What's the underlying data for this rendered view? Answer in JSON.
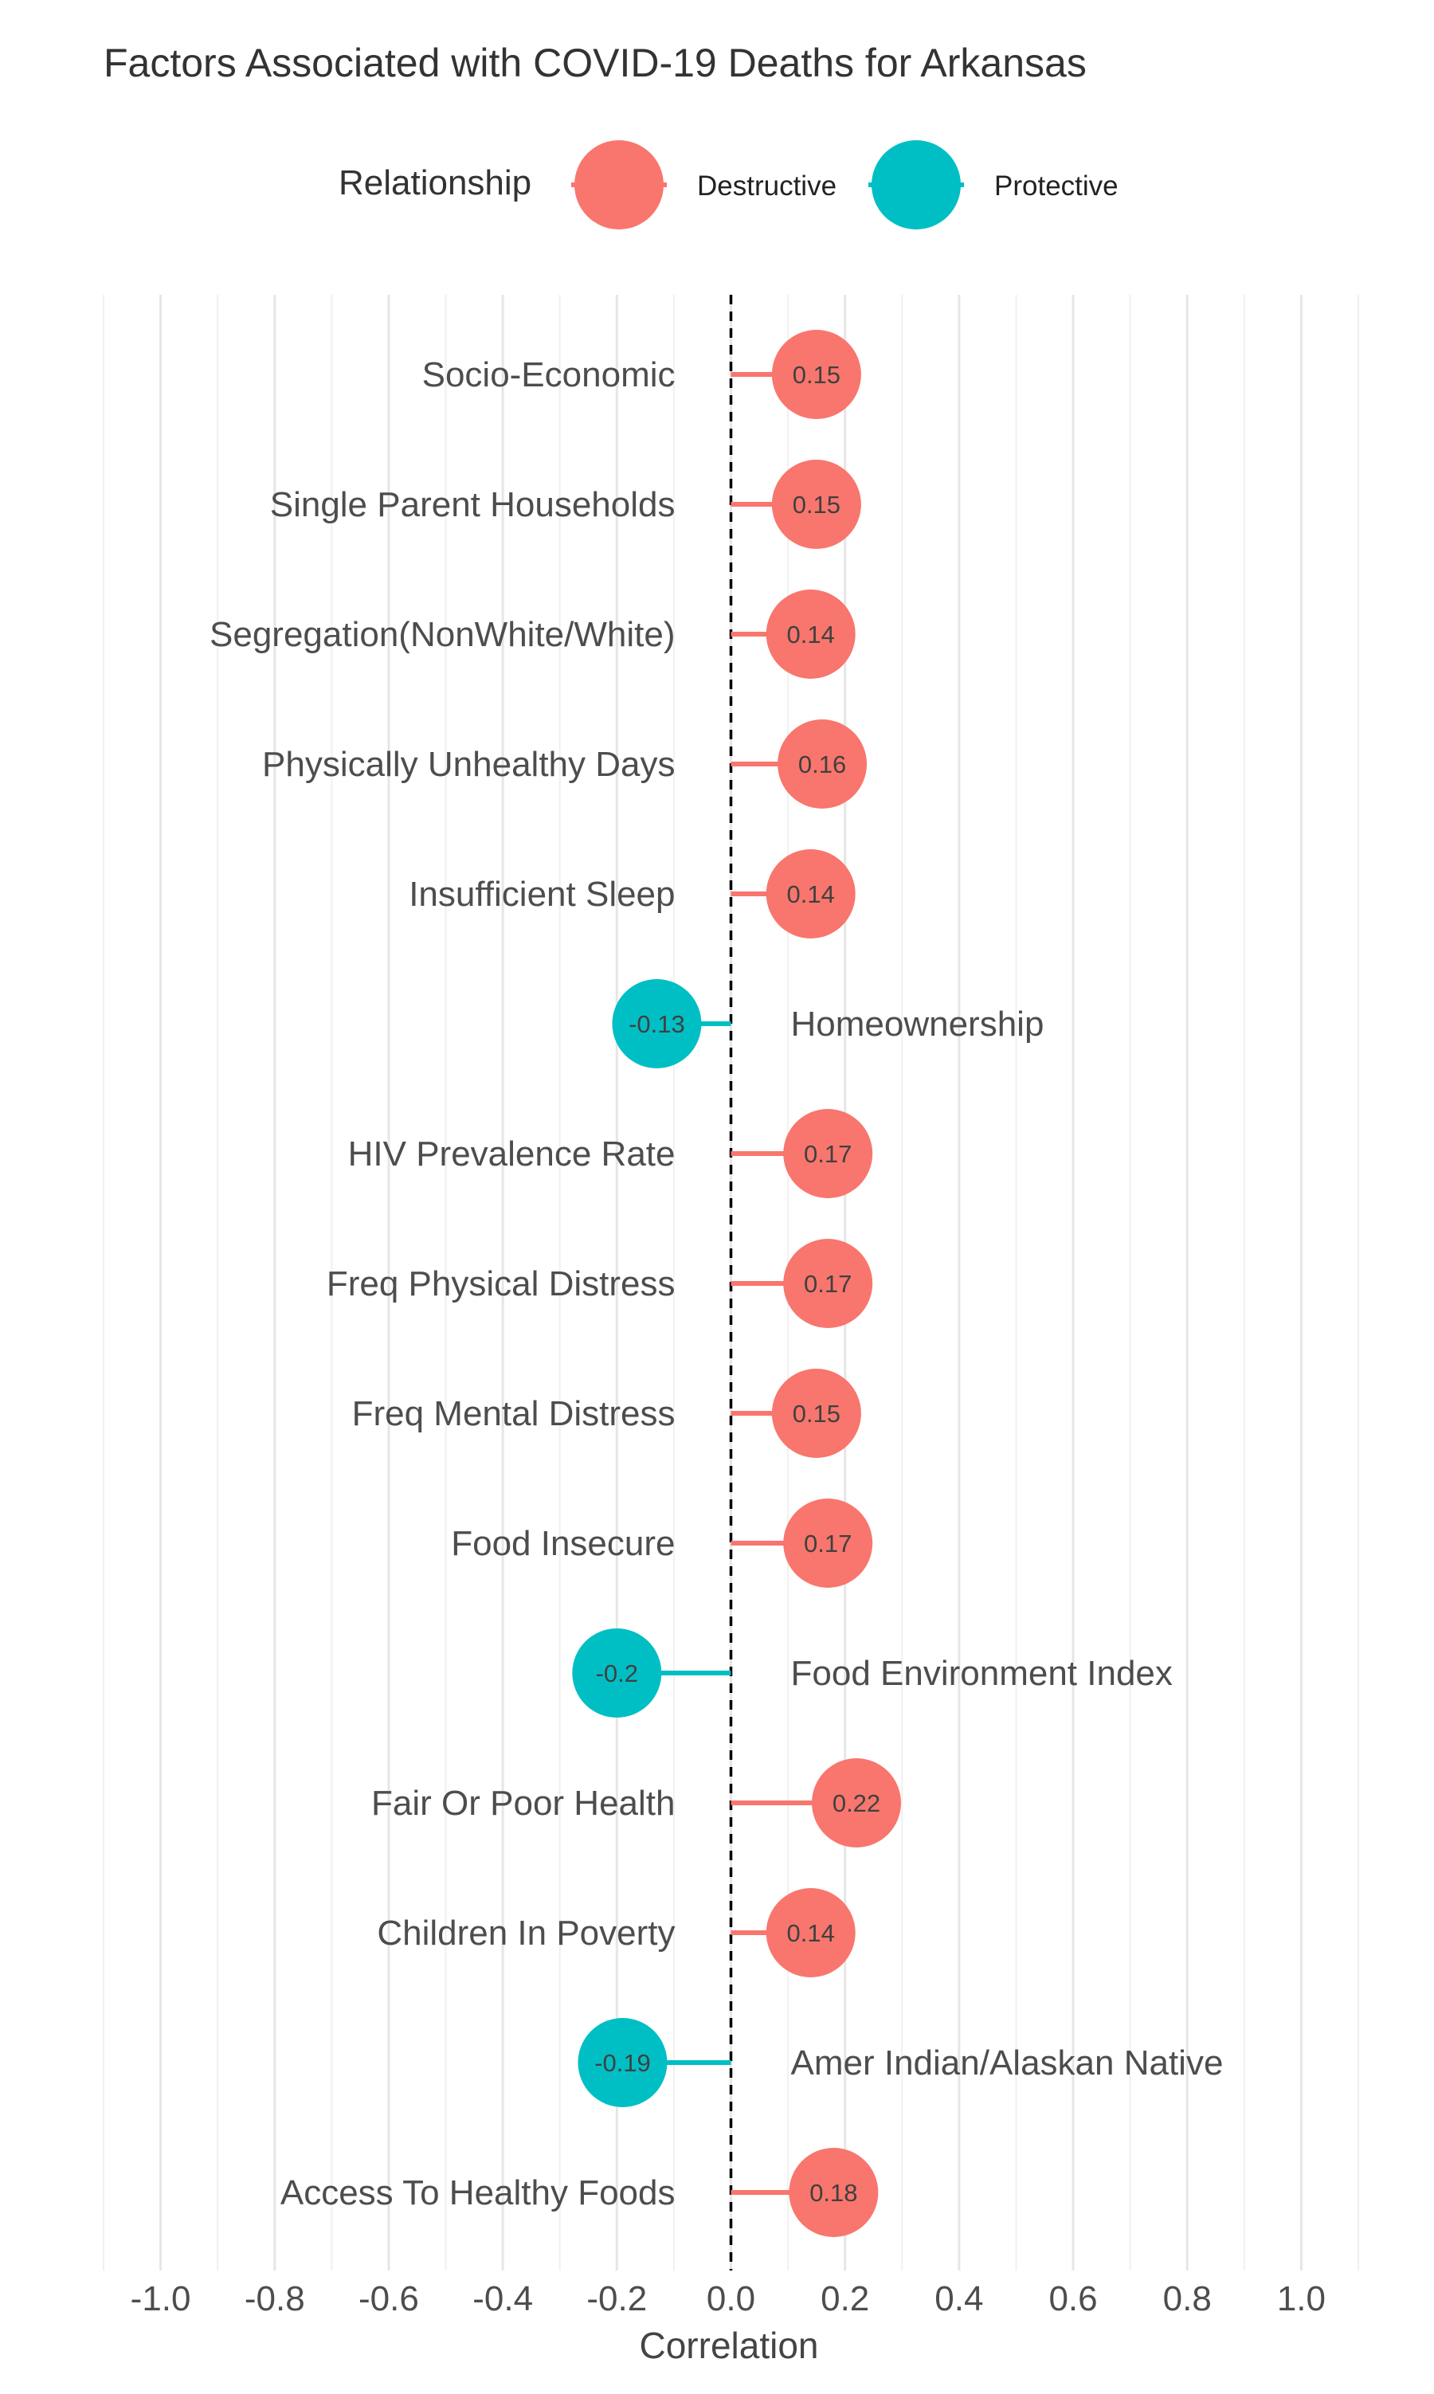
{
  "chart_data": {
    "type": "lollipop",
    "title": "Factors Associated with COVID-19 Deaths for Arkansas",
    "xlabel": "Correlation",
    "ylabel": "",
    "xlim": [
      -1.1,
      1.1
    ],
    "x_ticks": [
      -1.0,
      -0.8,
      -0.6,
      -0.4,
      -0.2,
      0.0,
      0.2,
      0.4,
      0.6,
      0.8,
      1.0
    ],
    "x_tick_labels": [
      "-1.0",
      "-0.8",
      "-0.6",
      "-0.4",
      "-0.2",
      "0.0",
      "0.2",
      "0.4",
      "0.6",
      "0.8",
      "1.0"
    ],
    "grid": true,
    "reference_line": {
      "x": 0,
      "style": "dashed",
      "color": "#000000"
    },
    "legend": {
      "title": "Relationship",
      "position": "top",
      "entries": [
        {
          "label": "Destructive",
          "color": "#F8766D"
        },
        {
          "label": "Protective",
          "color": "#00BFC4"
        }
      ]
    },
    "categories": [
      "Socio-Economic",
      "Single Parent Households",
      "Segregation(NonWhite/White)",
      "Physically Unhealthy Days",
      "Insufficient Sleep",
      "Homeownership",
      "HIV Prevalence Rate",
      "Freq Physical Distress",
      "Freq Mental Distress",
      "Food Insecure",
      "Food Environment Index",
      "Fair Or Poor Health",
      "Children In Poverty",
      "Amer Indian/Alaskan Native",
      "Access To Healthy Foods"
    ],
    "values": [
      0.15,
      0.15,
      0.14,
      0.16,
      0.14,
      -0.13,
      0.17,
      0.17,
      0.15,
      0.17,
      -0.2,
      0.22,
      0.14,
      -0.19,
      0.18
    ],
    "value_labels": [
      "0.15",
      "0.15",
      "0.14",
      "0.16",
      "0.14",
      "-0.13",
      "0.17",
      "0.17",
      "0.15",
      "0.17",
      "-0.2",
      "0.22",
      "0.14",
      "-0.19",
      "0.18"
    ],
    "relationship": [
      "Destructive",
      "Destructive",
      "Destructive",
      "Destructive",
      "Destructive",
      "Protective",
      "Destructive",
      "Destructive",
      "Destructive",
      "Destructive",
      "Protective",
      "Destructive",
      "Destructive",
      "Protective",
      "Destructive"
    ]
  }
}
